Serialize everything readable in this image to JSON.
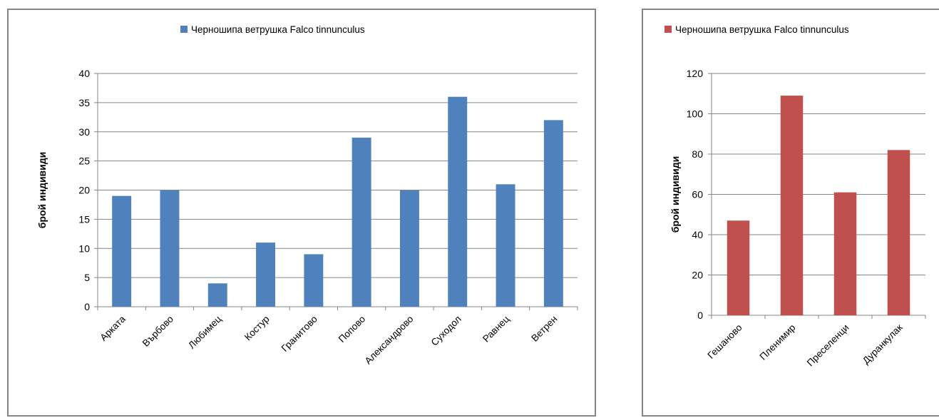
{
  "chart_data": [
    {
      "type": "bar",
      "legend": "Черношипа ветрушка Falco tinnunculus",
      "legend_position": "top",
      "ylabel": "брой индивиди",
      "xlabel": "",
      "ylim": [
        0,
        40
      ],
      "yticks": [
        0,
        5,
        10,
        15,
        20,
        25,
        30,
        35,
        40
      ],
      "grid": true,
      "color": "#4F81BD",
      "categories": [
        "Арката",
        "Върбово",
        "Любимец",
        "Костур",
        "Гранитово",
        "Попово",
        "Александрово",
        "Суходол",
        "Равнец",
        "Ветрен"
      ],
      "values": [
        19,
        20,
        4,
        11,
        9,
        29,
        20,
        36,
        21,
        32
      ]
    },
    {
      "type": "bar",
      "legend": "Черношипа ветрушка Falco tinnunculus",
      "legend_position": "top",
      "ylabel": "брой индивиди",
      "xlabel": "",
      "ylim": [
        0,
        120
      ],
      "yticks": [
        0,
        20,
        40,
        60,
        80,
        100,
        120
      ],
      "grid": true,
      "color": "#C0504D",
      "categories": [
        "Гешаново",
        "Пленимир",
        "Преселенци",
        "Дуранкулак"
      ],
      "values": [
        47,
        109,
        61,
        82
      ]
    }
  ]
}
